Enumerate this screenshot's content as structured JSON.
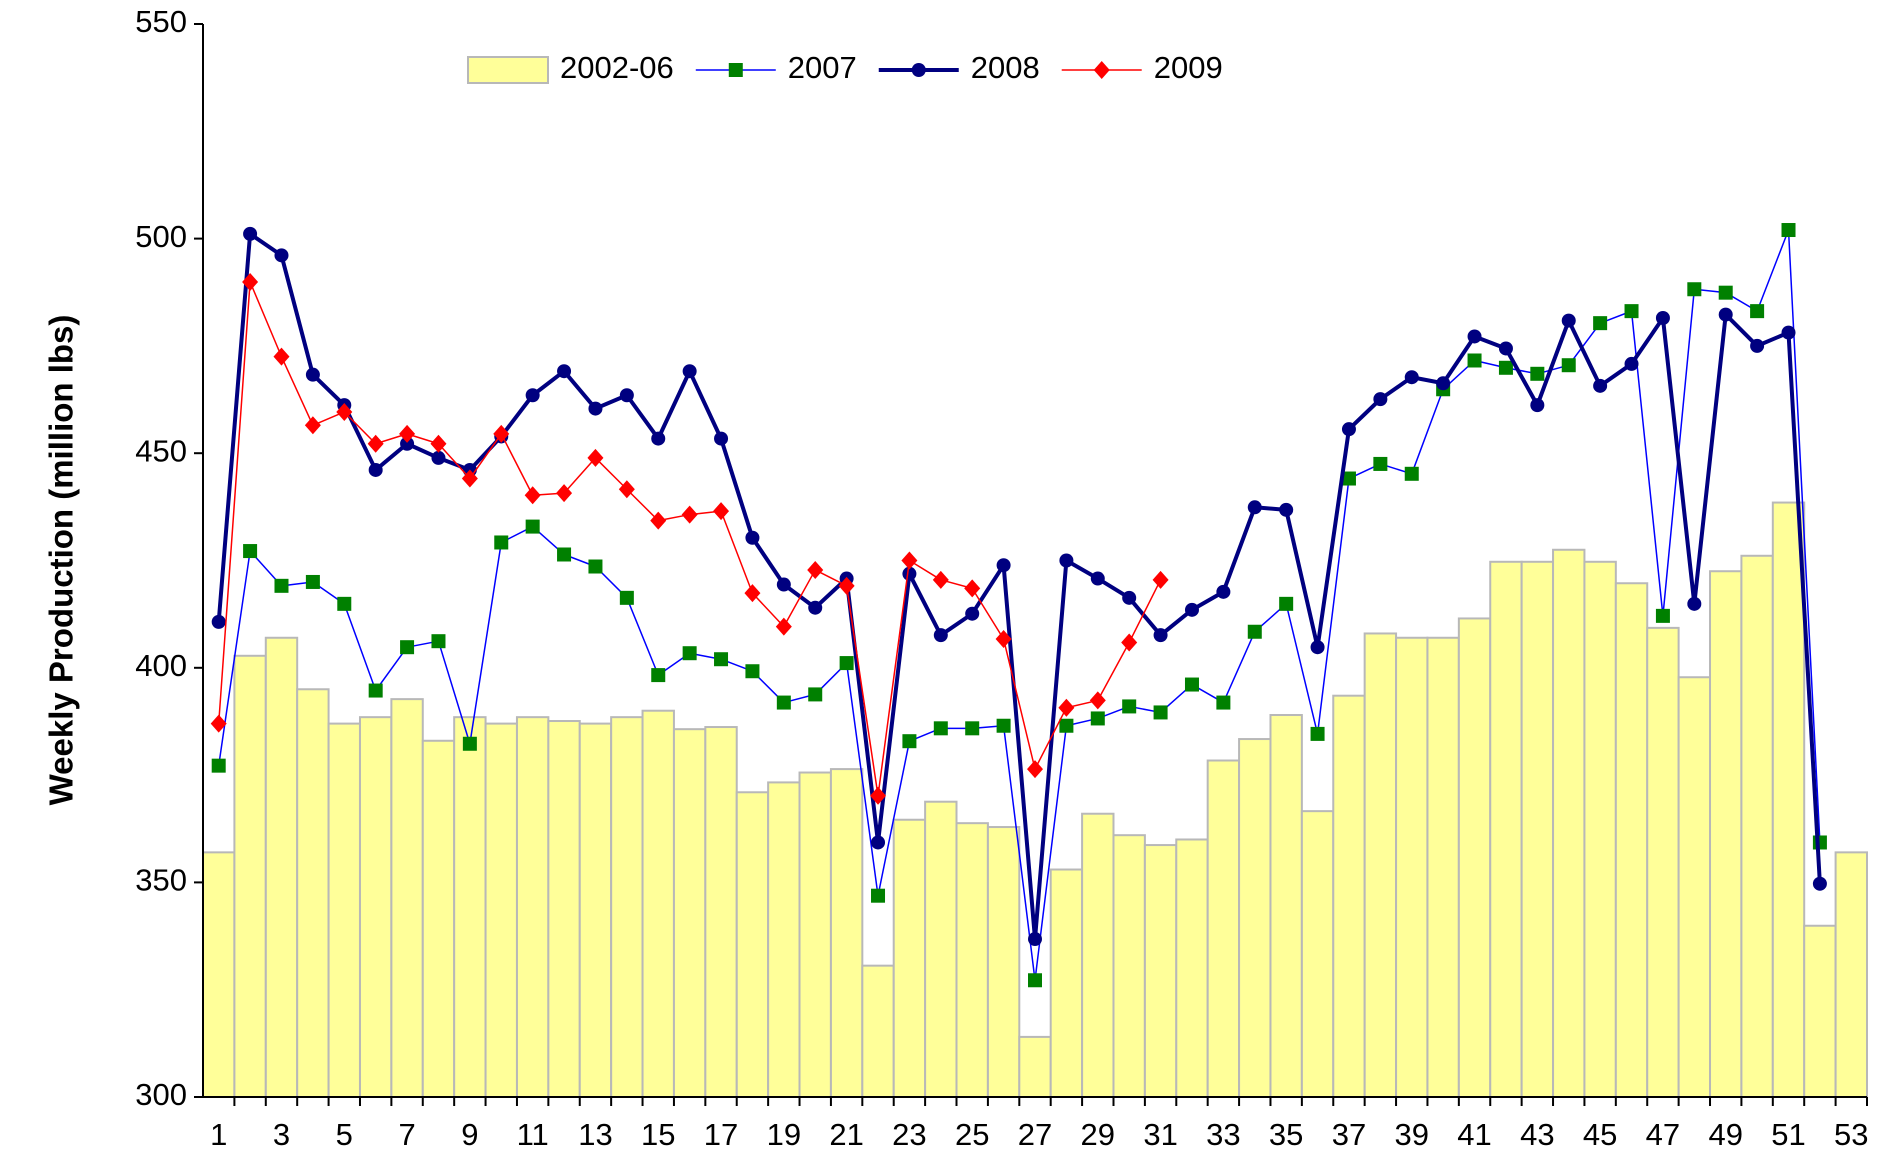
{
  "chart_data": {
    "type": "bar_line",
    "y_label": "Weekly Production (million lbs)",
    "categories": [
      "1",
      null,
      "3",
      null,
      "5",
      null,
      "7",
      null,
      "9",
      null,
      "11",
      null,
      "13",
      null,
      "15",
      null,
      "17",
      null,
      "19",
      null,
      "21",
      null,
      "23",
      null,
      "25",
      null,
      "27",
      null,
      "29",
      null,
      "31",
      null,
      "33",
      null,
      "35",
      null,
      "37",
      null,
      "39",
      null,
      "41",
      null,
      "43",
      null,
      "45",
      null,
      "47",
      null,
      "49",
      null,
      "51",
      null,
      "53"
    ],
    "ylim": [
      300,
      550
    ],
    "yticks": [
      300,
      350,
      400,
      450,
      500,
      550
    ],
    "legend": "top",
    "series": [
      {
        "name": "2002-06",
        "kind": "bar",
        "color": "#ffff99",
        "stroke": "#b8b8b8",
        "values": [
          357,
          402.8,
          407,
          395,
          387,
          388.5,
          392.7,
          383,
          388.5,
          387,
          388.5,
          387.6,
          387,
          388.5,
          390,
          385.7,
          386.2,
          371,
          373.3,
          375.6,
          376.4,
          330.6,
          364.6,
          368.8,
          363.8,
          362.9,
          314,
          353,
          366,
          361,
          358.7,
          360,
          378.4,
          383.4,
          389,
          366.6,
          393.5,
          408,
          407,
          407,
          411.5,
          424.7,
          424.7,
          427.5,
          424.7,
          419.7,
          409.3,
          397.8,
          422.5,
          426.1,
          438.5,
          339.9,
          357
        ]
      },
      {
        "name": "2007",
        "kind": "line",
        "color": "#0000ff",
        "marker": "square",
        "marker_color": "#008000",
        "line_width": 1.5,
        "values": [
          377.2,
          427.2,
          419.1,
          420,
          414.9,
          394.7,
          404.8,
          406.2,
          382.3,
          429.2,
          432.9,
          426.4,
          423.6,
          416.3,
          398.3,
          403.4,
          402,
          399.2,
          391.9,
          393.8,
          401.1,
          346.9,
          382.9,
          385.9,
          385.9,
          386.5,
          327.2,
          386.5,
          388.2,
          391,
          389.6,
          396.1,
          391.9,
          408.4,
          414.9,
          384.6,
          444.1,
          447.5,
          445.2,
          464.9,
          471.6,
          469.9,
          468.5,
          470.5,
          480.3,
          483.1,
          412.1,
          488.2,
          487.4,
          483.1,
          502,
          359.3,
          null
        ]
      },
      {
        "name": "2008",
        "kind": "line",
        "color": "#000080",
        "marker": "circle",
        "marker_color": "#000080",
        "line_width": 4,
        "values": [
          410.7,
          501.1,
          496.1,
          468.3,
          461.2,
          446.1,
          452.2,
          448.9,
          446.1,
          453.9,
          463.5,
          469.1,
          460.4,
          463.5,
          453.4,
          469.1,
          453.4,
          430.3,
          419.4,
          414,
          420.8,
          359.3,
          421.9,
          407.6,
          412.6,
          423.9,
          336.8,
          425,
          420.8,
          416.3,
          407.6,
          413.5,
          417.7,
          437.4,
          436.8,
          404.8,
          455.6,
          462.6,
          467.7,
          466.3,
          477.2,
          474.4,
          461.2,
          480.9,
          465.7,
          470.8,
          481.5,
          414.9,
          482.3,
          475,
          478.1,
          349.7,
          null
        ]
      },
      {
        "name": "2009",
        "kind": "line",
        "color": "#ff0000",
        "marker": "diamond",
        "marker_color": "#ff0000",
        "line_width": 1.5,
        "values": [
          387,
          489.9,
          472.5,
          456.5,
          459.6,
          452.2,
          454.5,
          452.2,
          444.1,
          454.5,
          440.2,
          440.7,
          448.9,
          441.6,
          434.3,
          435.7,
          436.5,
          417.4,
          409.6,
          422.8,
          419.1,
          370.2,
          425,
          420.5,
          418.5,
          406.7,
          376.4,
          390.7,
          392.4,
          405.9,
          420.5,
          null,
          null,
          null,
          null,
          null,
          null,
          null,
          null,
          null,
          null,
          null,
          null,
          null,
          null,
          null,
          null,
          null,
          null,
          null,
          null,
          null,
          null
        ]
      }
    ]
  }
}
